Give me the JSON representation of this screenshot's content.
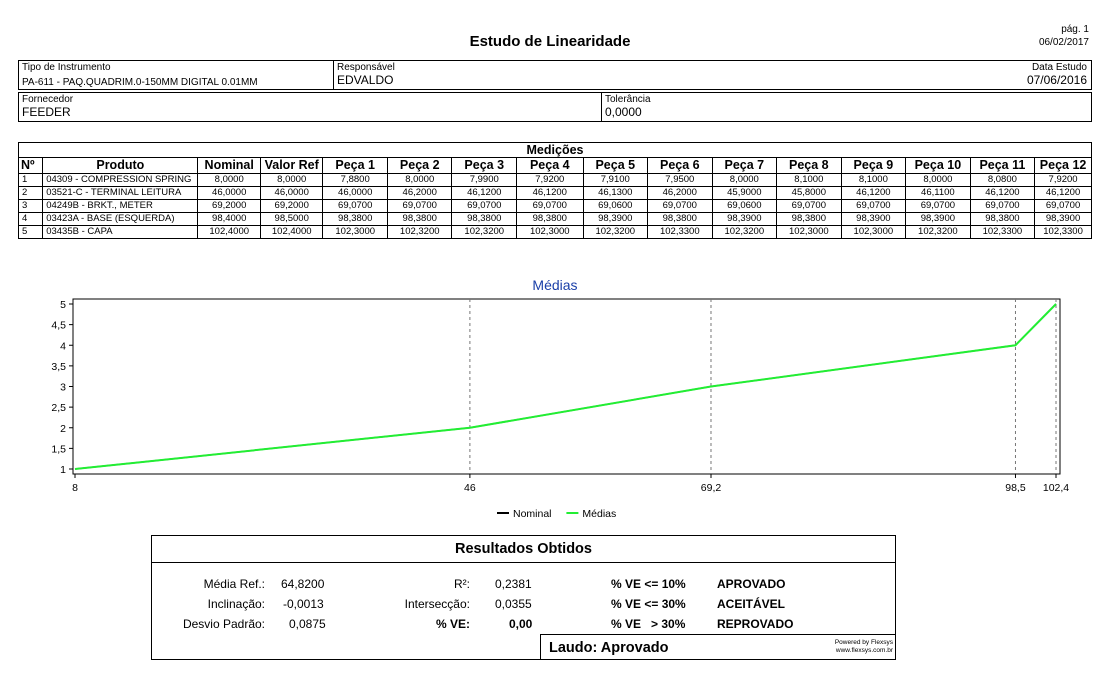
{
  "header": {
    "title": "Estudo de Linearidade",
    "page": "pág. 1",
    "date": "06/02/2017"
  },
  "info": {
    "tipo_label": "Tipo de Instrumento",
    "tipo_value": "PA-611 - PAQ.QUADRIM.0-150MM DIGITAL 0.01MM",
    "resp_label": "Responsável",
    "resp_value": "EDVALDO",
    "data_label": "Data Estudo",
    "data_value": "07/06/2016",
    "forn_label": "Fornecedor",
    "forn_value": "FEEDER",
    "tol_label": "Tolerância",
    "tol_value": "0,0000"
  },
  "medicoes": {
    "caption": "Medições",
    "headers": [
      "Nº",
      "Produto",
      "Nominal",
      "Valor Ref",
      "Peça 1",
      "Peça 2",
      "Peça 3",
      "Peça 4",
      "Peça 5",
      "Peça 6",
      "Peça 7",
      "Peça 8",
      "Peça 9",
      "Peça 10",
      "Peça 11",
      "Peça 12"
    ],
    "rows": [
      [
        "1",
        "04309 - COMPRESSION SPRING",
        "8,0000",
        "8,0000",
        "7,8800",
        "8,0000",
        "7,9900",
        "7,9200",
        "7,9100",
        "7,9500",
        "8,0000",
        "8,1000",
        "8,1000",
        "8,0000",
        "8,0800",
        "7,9200"
      ],
      [
        "2",
        "03521-C - TERMINAL LEITURA",
        "46,0000",
        "46,0000",
        "46,0000",
        "46,2000",
        "46,1200",
        "46,1200",
        "46,1300",
        "46,2000",
        "45,9000",
        "45,8000",
        "46,1200",
        "46,1100",
        "46,1200",
        "46,1200"
      ],
      [
        "3",
        "04249B - BRKT., METER",
        "69,2000",
        "69,2000",
        "69,0700",
        "69,0700",
        "69,0700",
        "69,0700",
        "69,0600",
        "69,0700",
        "69,0600",
        "69,0700",
        "69,0700",
        "69,0700",
        "69,0700",
        "69,0700"
      ],
      [
        "4",
        "03423A - BASE (ESQUERDA)",
        "98,4000",
        "98,5000",
        "98,3800",
        "98,3800",
        "98,3800",
        "98,3800",
        "98,3900",
        "98,3800",
        "98,3900",
        "98,3800",
        "98,3900",
        "98,3900",
        "98,3800",
        "98,3900"
      ],
      [
        "5",
        "03435B - CAPA",
        "102,4000",
        "102,4000",
        "102,3000",
        "102,3200",
        "102,3200",
        "102,3000",
        "102,3200",
        "102,3300",
        "102,3200",
        "102,3000",
        "102,3000",
        "102,3200",
        "102,3300",
        "102,3300"
      ]
    ]
  },
  "chart_data": {
    "type": "line",
    "title": "Médias",
    "x": [
      8,
      46,
      69.2,
      98.5,
      102.4
    ],
    "x_tick_labels": [
      "8",
      "46",
      "69,2",
      "98,5",
      "102,4"
    ],
    "y_tick_labels": [
      "1",
      "1,5",
      "2",
      "2,5",
      "3",
      "3,5",
      "4",
      "4,5",
      "5"
    ],
    "ylim": [
      1,
      5
    ],
    "xlim": [
      8,
      102.4
    ],
    "series": [
      {
        "name": "Nominal",
        "color": "#000000",
        "values": [
          1,
          2,
          3,
          4,
          5
        ]
      },
      {
        "name": "Médias",
        "color": "#22ee33",
        "values": [
          1,
          2,
          3,
          4,
          5
        ]
      }
    ],
    "legend": "bottom-center",
    "grid": "vertical-dashed"
  },
  "results": {
    "title": "Resultados Obtidos",
    "media_ref_label": "Média Ref.:",
    "media_ref": "64,8200",
    "inclinacao_label": "Inclinação:",
    "inclinacao": "-0,0013",
    "desvio_label": "Desvio Padrão:",
    "desvio": "0,0875",
    "r2_label": "R²:",
    "r2": "0,2381",
    "intersec_label": "Intersecção:",
    "intersec": "0,0355",
    "ve_label": "% VE:",
    "ve": "0,00",
    "crit1": "% VE <= 10%",
    "crit1_res": "APROVADO",
    "crit2": "% VE <= 30%",
    "crit2_res": "ACEITÁVEL",
    "crit3": "% VE   > 30%",
    "crit3_res": "REPROVADO",
    "laudo": "Laudo: Aprovado",
    "powered": "Powered by Flexsys",
    "site": "www.flexsys.com.br"
  }
}
